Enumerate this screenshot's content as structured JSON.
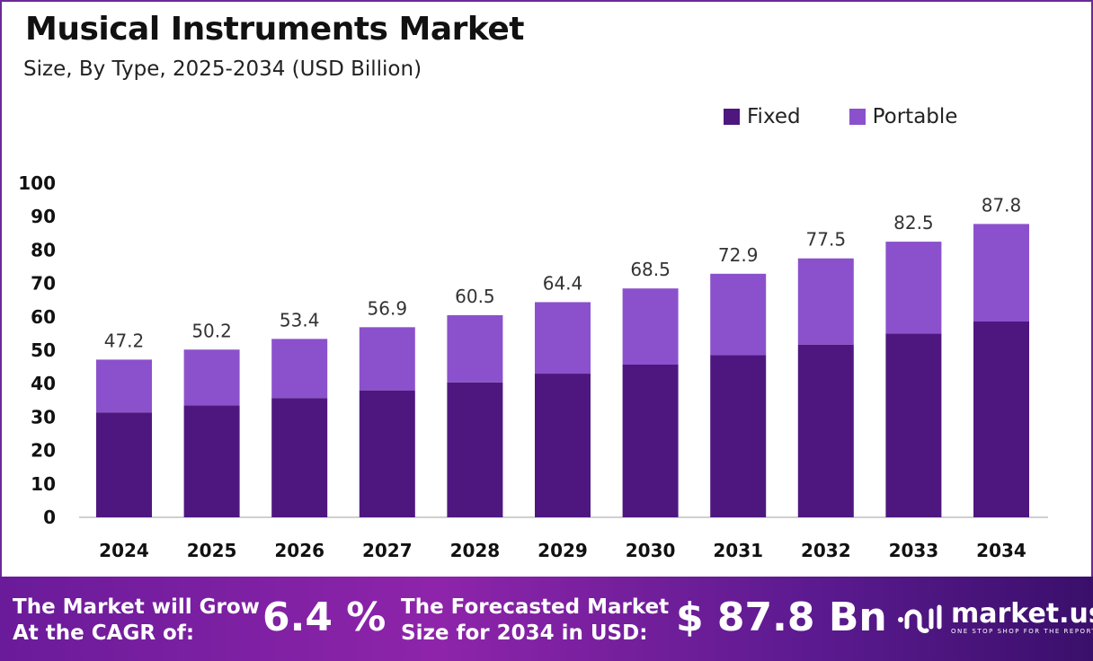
{
  "header": {
    "title": "Musical Instruments Market",
    "subtitle": "Size, By Type, 2025-2034 (USD Billion)"
  },
  "chart_data": {
    "type": "bar",
    "stacked": true,
    "categories": [
      "2024",
      "2025",
      "2026",
      "2027",
      "2028",
      "2029",
      "2030",
      "2031",
      "2032",
      "2033",
      "2034"
    ],
    "series": [
      {
        "name": "Fixed",
        "color": "#4E1780",
        "values": [
          31.4,
          33.5,
          35.7,
          38.0,
          40.4,
          43.0,
          45.7,
          48.6,
          51.7,
          55.0,
          58.6
        ]
      },
      {
        "name": "Portable",
        "color": "#8B51CC",
        "values": [
          15.8,
          16.7,
          17.7,
          18.9,
          20.1,
          21.4,
          22.8,
          24.3,
          25.8,
          27.5,
          29.2
        ]
      }
    ],
    "totals": [
      "47.2",
      "50.2",
      "53.4",
      "56.9",
      "60.5",
      "64.4",
      "68.5",
      "72.9",
      "77.5",
      "82.5",
      "87.8"
    ],
    "ylim": [
      0,
      100
    ],
    "yticks": [
      "0",
      "10",
      "20",
      "30",
      "40",
      "50",
      "60",
      "70",
      "80",
      "90",
      "100"
    ],
    "grid": false,
    "legend_position": "top-right"
  },
  "banner": {
    "cagr_label_line1": "The Market will Grow",
    "cagr_label_line2": "At the CAGR of:",
    "cagr_value": "6.4 %",
    "forecast_label_line1": "The Forecasted Market",
    "forecast_label_line2": "Size for 2034 in USD:",
    "forecast_value": "$ 87.8 Bn",
    "logo_name": "market.us",
    "logo_tagline": "ONE STOP SHOP FOR THE REPORTS"
  }
}
